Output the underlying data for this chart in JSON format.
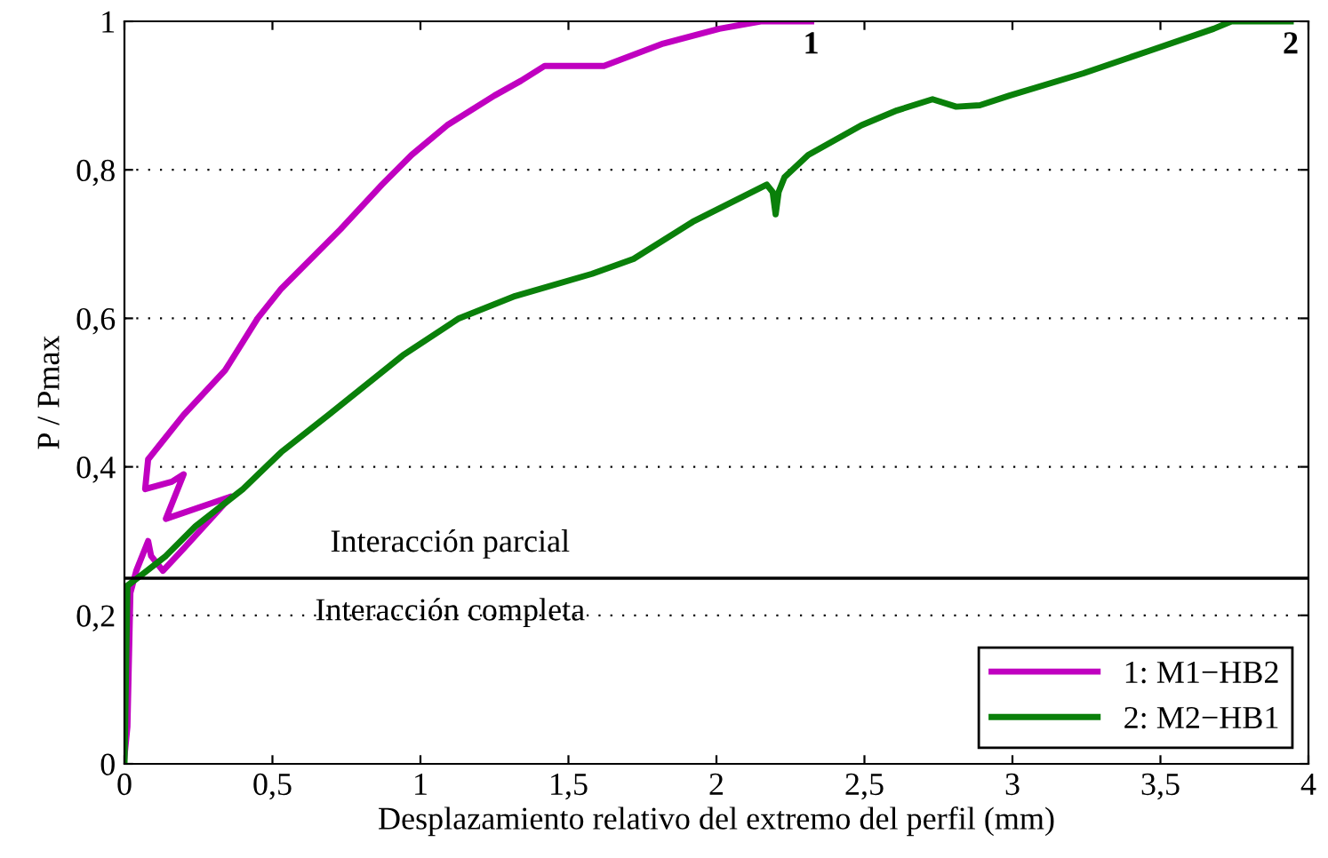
{
  "chart_data": {
    "type": "line",
    "xlabel": "Desplazamiento relativo del extremo del perfil (mm)",
    "ylabel": "P / Pmax",
    "xlim": [
      0,
      4
    ],
    "ylim": [
      0,
      1
    ],
    "xticks": [
      0,
      {
        "value": 0.5,
        "label": "0,5"
      },
      1,
      {
        "value": 1.5,
        "label": "1,5"
      },
      2,
      {
        "value": 2.5,
        "label": "2,5"
      },
      3,
      {
        "value": 3.5,
        "label": "3,5"
      },
      4
    ],
    "yticks": [
      0,
      {
        "value": 0.2,
        "label": "0,2"
      },
      {
        "value": 0.4,
        "label": "0,4"
      },
      {
        "value": 0.6,
        "label": "0,6"
      },
      {
        "value": 0.8,
        "label": "0,8"
      },
      1
    ],
    "grid": "y",
    "legend": "bottom right",
    "series": [
      {
        "name": "1: M1−HB2",
        "color": "#c000c0",
        "x": [
          0,
          0.01,
          0.02,
          0.04,
          0.08,
          0.09,
          0.13,
          0.2,
          0.36,
          0.14,
          0.2,
          0.16,
          0.07,
          0.08,
          0.12,
          0.2,
          0.34,
          0.45,
          0.53,
          0.73,
          0.87,
          0.97,
          1.09,
          1.25,
          1.34,
          1.42,
          1.62,
          1.82,
          2.01,
          2.15,
          2.32
        ],
        "values": [
          0.01,
          0.05,
          0.23,
          0.26,
          0.3,
          0.28,
          0.26,
          0.29,
          0.36,
          0.33,
          0.39,
          0.38,
          0.37,
          0.41,
          0.43,
          0.47,
          0.53,
          0.6,
          0.64,
          0.72,
          0.78,
          0.82,
          0.86,
          0.9,
          0.92,
          0.94,
          0.94,
          0.97,
          0.99,
          1.0,
          1.0
        ]
      },
      {
        "name": "2: M2−HB1",
        "color": "#0a800a",
        "x": [
          0,
          0.01,
          0.06,
          0.14,
          0.24,
          0.4,
          0.53,
          0.69,
          0.94,
          1.13,
          1.32,
          1.58,
          1.72,
          1.92,
          2.17,
          2.19,
          2.2,
          2.21,
          2.23,
          2.31,
          2.49,
          2.61,
          2.73,
          2.81,
          2.89,
          2.99,
          3.24,
          3.46,
          3.68,
          3.74,
          3.94
        ],
        "values": [
          0,
          0.24,
          0.255,
          0.28,
          0.32,
          0.37,
          0.42,
          0.47,
          0.55,
          0.6,
          0.63,
          0.66,
          0.68,
          0.73,
          0.78,
          0.77,
          0.74,
          0.77,
          0.79,
          0.82,
          0.86,
          0.88,
          0.895,
          0.885,
          0.887,
          0.9,
          0.93,
          0.96,
          0.99,
          1.0,
          1.0
        ]
      }
    ],
    "ref_lines": [
      {
        "axis": "y",
        "value": 0.25,
        "color": "#000000"
      }
    ],
    "annotations": [
      "Interacción parcial",
      "Interacción completa",
      {
        "text": "1",
        "x": 2.32,
        "y": 1.0
      },
      {
        "text": "2",
        "x": 3.94,
        "y": 1.0
      }
    ]
  }
}
